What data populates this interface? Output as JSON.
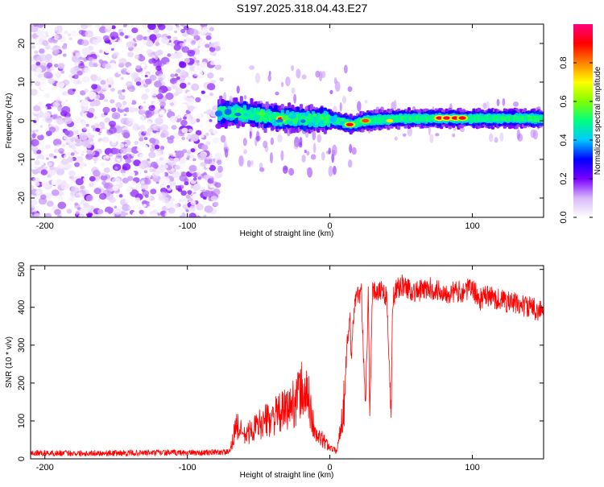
{
  "title": "S197.2025.318.04.43.E27",
  "chart_data": [
    {
      "type": "heatmap",
      "xlabel": "Height of straight line (km)",
      "ylabel": "Frequency (Hz)",
      "xlim": [
        -210,
        150
      ],
      "ylim": [
        -25,
        25
      ],
      "x_ticks": [
        -200,
        -100,
        0,
        100
      ],
      "x_tick_labels": [
        "-200",
        "-100",
        "0",
        "100"
      ],
      "y_ticks": [
        -20,
        -10,
        0,
        10,
        20
      ],
      "y_tick_labels": [
        "-20",
        "-10",
        "0",
        "10",
        "20"
      ],
      "colorbar": {
        "label": "Normalized spectral amplitude",
        "range": [
          0,
          1
        ],
        "ticks": [
          0,
          0.2,
          0.4,
          0.6,
          0.8
        ],
        "tick_labels": [
          "0.0",
          "0.2",
          "0.4",
          "0.6",
          "0.8"
        ],
        "colors": [
          "#ffffff",
          "#d8b8f8",
          "#7a00ff",
          "#0000ff",
          "#00c8ff",
          "#00ff80",
          "#80ff00",
          "#ffff00",
          "#ff8000",
          "#ff0000",
          "#ff0080"
        ]
      },
      "noise_region_x": [
        -210,
        -78
      ],
      "signal_track": [
        {
          "x": -78,
          "f": 2.2
        },
        {
          "x": -60,
          "f": 2.0
        },
        {
          "x": -40,
          "f": 0.8
        },
        {
          "x": -20,
          "f": 0.4
        },
        {
          "x": 0,
          "f": 0.4
        },
        {
          "x": 15,
          "f": -1.0
        },
        {
          "x": 25,
          "f": 0.0
        },
        {
          "x": 50,
          "f": 0.6
        },
        {
          "x": 80,
          "f": 0.6
        },
        {
          "x": 110,
          "f": 0.6
        },
        {
          "x": 150,
          "f": 0.6
        }
      ],
      "peaks": [
        {
          "x": -34,
          "f": 0.5,
          "amp": 0.92
        },
        {
          "x": 14,
          "f": -1.0,
          "amp": 0.9
        },
        {
          "x": 25,
          "f": 0.0,
          "amp": 0.85
        },
        {
          "x": 42,
          "f": 0.0,
          "amp": 0.72
        },
        {
          "x": 77,
          "f": 0.7,
          "amp": 0.95
        },
        {
          "x": 82,
          "f": 0.7,
          "amp": 0.95
        },
        {
          "x": 88,
          "f": 0.7,
          "amp": 0.93
        },
        {
          "x": 93,
          "f": 0.7,
          "amp": 0.9
        }
      ]
    },
    {
      "type": "line",
      "xlabel": "Height of straight line (km)",
      "ylabel": "SNR (10 * v/v)",
      "xlim": [
        -210,
        150
      ],
      "ylim": [
        0,
        510
      ],
      "x_ticks": [
        -200,
        -100,
        0,
        100
      ],
      "x_tick_labels": [
        "-200",
        "-100",
        "0",
        "100"
      ],
      "y_ticks": [
        0,
        100,
        200,
        300,
        400,
        500
      ],
      "y_tick_labels": [
        "0",
        "100",
        "200",
        "300",
        "400",
        "500"
      ],
      "color": "#ff0000",
      "series": [
        {
          "name": "SNR",
          "x": [
            -210,
            -180,
            -150,
            -120,
            -90,
            -70,
            -66,
            -60,
            -50,
            -40,
            -30,
            -25,
            -20,
            -15,
            -10,
            -5,
            0,
            5,
            10,
            12,
            14,
            15,
            16,
            18,
            20,
            22,
            25,
            27,
            28,
            30,
            35,
            40,
            43,
            44,
            46,
            48,
            50,
            55,
            60,
            70,
            80,
            90,
            100,
            105,
            110,
            120,
            130,
            140,
            150
          ],
          "y": [
            15,
            15,
            15,
            16,
            16,
            18,
            90,
            60,
            90,
            110,
            130,
            150,
            180,
            160,
            60,
            50,
            30,
            20,
            150,
            300,
            380,
            260,
            350,
            420,
            430,
            450,
            140,
            440,
            130,
            440,
            450,
            430,
            110,
            420,
            440,
            450,
            460,
            450,
            440,
            450,
            440,
            440,
            450,
            420,
            430,
            420,
            410,
            400,
            390
          ]
        }
      ]
    }
  ]
}
